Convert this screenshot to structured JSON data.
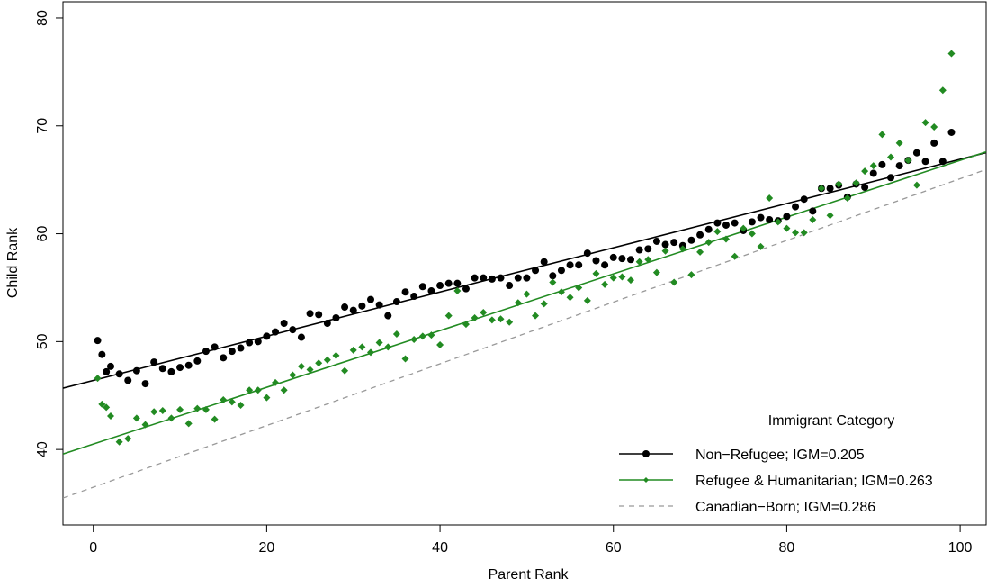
{
  "chart_data": {
    "type": "scatter",
    "xlabel": "Parent Rank",
    "ylabel": "Child Rank",
    "xlim": [
      -3.5,
      103
    ],
    "ylim": [
      33,
      81.5
    ],
    "xticks": [
      0,
      20,
      40,
      60,
      80,
      100
    ],
    "yticks": [
      40,
      50,
      60,
      70,
      80
    ],
    "grid": false,
    "legend": {
      "title": "Immigrant Category",
      "placement": "bottom-right",
      "entries": [
        {
          "label": "Non−Refugee; IGM=0.205",
          "color": "#000000",
          "line": "solid",
          "marker": "circle"
        },
        {
          "label": "Refugee & Humanitarian; IGM=0.263",
          "color": "#228b22",
          "line": "solid",
          "marker": "diamond"
        },
        {
          "label": "Canadian−Born; IGM=0.286",
          "color": "#999999",
          "line": "dashed",
          "marker": "none"
        }
      ]
    },
    "series": [
      {
        "name": "Non−Refugee; IGM=0.205",
        "color": "#000000",
        "marker": "circle",
        "fit": {
          "intercept": 46.4,
          "slope": 0.205
        },
        "points": [
          [
            0.5,
            50.1
          ],
          [
            1,
            48.8
          ],
          [
            1.5,
            47.2
          ],
          [
            2,
            47.7
          ],
          [
            3,
            47.0
          ],
          [
            4,
            46.4
          ],
          [
            5,
            47.3
          ],
          [
            6,
            46.1
          ],
          [
            7,
            48.1
          ],
          [
            8,
            47.5
          ],
          [
            9,
            47.2
          ],
          [
            10,
            47.6
          ],
          [
            11,
            47.8
          ],
          [
            12,
            48.2
          ],
          [
            13,
            49.1
          ],
          [
            14,
            49.5
          ],
          [
            15,
            48.5
          ],
          [
            16,
            49.1
          ],
          [
            17,
            49.4
          ],
          [
            18,
            49.9
          ],
          [
            19,
            50.0
          ],
          [
            20,
            50.5
          ],
          [
            21,
            50.9
          ],
          [
            22,
            51.7
          ],
          [
            23,
            51.1
          ],
          [
            24,
            50.4
          ],
          [
            25,
            52.6
          ],
          [
            26,
            52.5
          ],
          [
            27,
            51.7
          ],
          [
            28,
            52.2
          ],
          [
            29,
            53.2
          ],
          [
            30,
            52.9
          ],
          [
            31,
            53.3
          ],
          [
            32,
            53.9
          ],
          [
            33,
            53.4
          ],
          [
            34,
            52.4
          ],
          [
            35,
            53.7
          ],
          [
            36,
            54.6
          ],
          [
            37,
            54.2
          ],
          [
            38,
            55.1
          ],
          [
            39,
            54.7
          ],
          [
            40,
            55.2
          ],
          [
            41,
            55.4
          ],
          [
            42,
            55.4
          ],
          [
            43,
            54.9
          ],
          [
            44,
            55.9
          ],
          [
            45,
            55.9
          ],
          [
            46,
            55.8
          ],
          [
            47,
            55.9
          ],
          [
            48,
            55.2
          ],
          [
            49,
            55.9
          ],
          [
            50,
            55.9
          ],
          [
            51,
            56.6
          ],
          [
            52,
            57.4
          ],
          [
            53,
            56.1
          ],
          [
            54,
            56.6
          ],
          [
            55,
            57.1
          ],
          [
            56,
            57.1
          ],
          [
            57,
            58.2
          ],
          [
            58,
            57.5
          ],
          [
            59,
            57.1
          ],
          [
            60,
            57.8
          ],
          [
            61,
            57.7
          ],
          [
            62,
            57.6
          ],
          [
            63,
            58.5
          ],
          [
            64,
            58.6
          ],
          [
            65,
            59.3
          ],
          [
            66,
            59.0
          ],
          [
            67,
            59.2
          ],
          [
            68,
            58.9
          ],
          [
            69,
            59.4
          ],
          [
            70,
            59.9
          ],
          [
            71,
            60.4
          ],
          [
            72,
            61.0
          ],
          [
            73,
            60.8
          ],
          [
            74,
            61.0
          ],
          [
            75,
            60.3
          ],
          [
            76,
            61.1
          ],
          [
            77,
            61.5
          ],
          [
            78,
            61.3
          ],
          [
            79,
            61.2
          ],
          [
            80,
            61.6
          ],
          [
            81,
            62.5
          ],
          [
            82,
            63.2
          ],
          [
            83,
            62.1
          ],
          [
            84,
            64.2
          ],
          [
            85,
            64.2
          ],
          [
            86,
            64.5
          ],
          [
            87,
            63.4
          ],
          [
            88,
            64.6
          ],
          [
            89,
            64.3
          ],
          [
            90,
            65.6
          ],
          [
            91,
            66.4
          ],
          [
            92,
            65.2
          ],
          [
            93,
            66.3
          ],
          [
            94,
            66.8
          ],
          [
            95,
            67.5
          ],
          [
            96,
            66.7
          ],
          [
            97,
            68.4
          ],
          [
            98,
            66.7
          ],
          [
            99,
            69.4
          ]
        ]
      },
      {
        "name": "Refugee & Humanitarian; IGM=0.263",
        "color": "#228b22",
        "marker": "diamond",
        "fit": {
          "intercept": 40.5,
          "slope": 0.263
        },
        "points": [
          [
            0.5,
            46.6
          ],
          [
            1,
            44.2
          ],
          [
            1.5,
            43.9
          ],
          [
            2,
            43.1
          ],
          [
            3,
            40.7
          ],
          [
            4,
            41.0
          ],
          [
            5,
            42.9
          ],
          [
            6,
            42.3
          ],
          [
            7,
            43.5
          ],
          [
            8,
            43.6
          ],
          [
            9,
            42.9
          ],
          [
            10,
            43.7
          ],
          [
            11,
            42.4
          ],
          [
            12,
            43.8
          ],
          [
            13,
            43.7
          ],
          [
            14,
            42.8
          ],
          [
            15,
            44.6
          ],
          [
            16,
            44.4
          ],
          [
            17,
            44.1
          ],
          [
            18,
            45.5
          ],
          [
            19,
            45.5
          ],
          [
            20,
            44.8
          ],
          [
            21,
            46.2
          ],
          [
            22,
            45.5
          ],
          [
            23,
            46.9
          ],
          [
            24,
            47.7
          ],
          [
            25,
            47.4
          ],
          [
            26,
            48.0
          ],
          [
            27,
            48.3
          ],
          [
            28,
            48.7
          ],
          [
            29,
            47.3
          ],
          [
            30,
            49.2
          ],
          [
            31,
            49.5
          ],
          [
            32,
            49.0
          ],
          [
            33,
            49.9
          ],
          [
            34,
            49.5
          ],
          [
            35,
            50.7
          ],
          [
            36,
            48.4
          ],
          [
            37,
            50.2
          ],
          [
            38,
            50.5
          ],
          [
            39,
            50.6
          ],
          [
            40,
            49.7
          ],
          [
            41,
            52.4
          ],
          [
            42,
            54.7
          ],
          [
            43,
            51.6
          ],
          [
            44,
            52.2
          ],
          [
            45,
            52.7
          ],
          [
            46,
            52.0
          ],
          [
            47,
            52.1
          ],
          [
            48,
            51.8
          ],
          [
            49,
            53.6
          ],
          [
            50,
            54.4
          ],
          [
            51,
            52.4
          ],
          [
            52,
            53.5
          ],
          [
            53,
            55.5
          ],
          [
            54,
            54.6
          ],
          [
            55,
            54.1
          ],
          [
            56,
            55.0
          ],
          [
            57,
            53.8
          ],
          [
            58,
            56.3
          ],
          [
            59,
            55.3
          ],
          [
            60,
            55.9
          ],
          [
            61,
            56.0
          ],
          [
            62,
            55.7
          ],
          [
            63,
            57.4
          ],
          [
            64,
            57.6
          ],
          [
            65,
            56.4
          ],
          [
            66,
            58.4
          ],
          [
            67,
            55.5
          ],
          [
            68,
            58.6
          ],
          [
            69,
            56.2
          ],
          [
            70,
            58.3
          ],
          [
            71,
            59.2
          ],
          [
            72,
            60.2
          ],
          [
            73,
            59.5
          ],
          [
            74,
            57.9
          ],
          [
            75,
            60.5
          ],
          [
            76,
            60.0
          ],
          [
            77,
            58.8
          ],
          [
            78,
            63.3
          ],
          [
            79,
            61.1
          ],
          [
            80,
            60.5
          ],
          [
            81,
            60.1
          ],
          [
            82,
            60.1
          ],
          [
            83,
            61.3
          ],
          [
            84,
            64.2
          ],
          [
            85,
            61.7
          ],
          [
            86,
            64.6
          ],
          [
            87,
            63.3
          ],
          [
            88,
            64.7
          ],
          [
            89,
            65.8
          ],
          [
            90,
            66.3
          ],
          [
            91,
            69.2
          ],
          [
            92,
            67.1
          ],
          [
            93,
            68.4
          ],
          [
            94,
            66.8
          ],
          [
            95,
            64.5
          ],
          [
            96,
            70.3
          ],
          [
            97,
            69.9
          ],
          [
            98,
            73.3
          ],
          [
            99,
            76.7
          ]
        ]
      },
      {
        "name": "Canadian−Born; IGM=0.286",
        "color": "#999999",
        "marker": "none",
        "line": "dashed",
        "fit": {
          "intercept": 36.5,
          "slope": 0.286
        }
      }
    ]
  }
}
